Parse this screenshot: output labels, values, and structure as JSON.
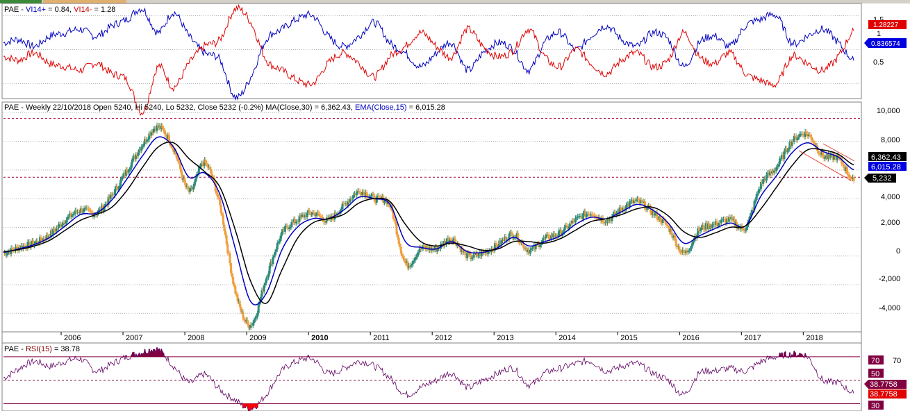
{
  "panels": {
    "vi": {
      "label_prefix": "PAE - ",
      "label_plus": "VI14+",
      "label_plus_val": " = 0.84, ",
      "label_minus": "VI14-",
      "label_minus_val": " = 1.28",
      "ticks": [
        "1.5",
        "1",
        "0.5"
      ],
      "badge_minus": "1.28227",
      "badge_plus": "0.836574"
    },
    "price": {
      "label_main": "PAE - Weekly 22/10/2018 Open 5240, Hi 5240, Lo 5232, Close 5232 (-0.2%) MA(Close,30) = 6,362.43, ",
      "label_ema": "EMA(Close,15)",
      "label_ema_val": " = 6,015.28",
      "ticks": [
        "10,000",
        "8,000",
        "6,000",
        "4,000",
        "2,000",
        "0",
        "-2,000",
        "-4,000"
      ],
      "badge_ma": "6,362.43",
      "badge_ema": "6,015.28",
      "badge_close": "5,232"
    },
    "rsi": {
      "label_prefix": "PAE - ",
      "label_rsi": "RSI(15)",
      "label_val": " = 38.78",
      "tick_70": "70",
      "badge_70": "70",
      "badge_50": "50",
      "badge_a": "38.7758",
      "badge_b": "38.7758",
      "badge_30": "30"
    }
  },
  "x_axis": {
    "years": [
      "2006",
      "2007",
      "2008",
      "2009",
      "2010",
      "2011",
      "2012",
      "2013",
      "2014",
      "2015",
      "2016",
      "2017",
      "2018"
    ]
  },
  "chart_data": [
    {
      "type": "line",
      "title": "PAE - VI14+ = 0.84, VI14- = 1.28",
      "ylim": [
        0.3,
        1.65
      ],
      "yticks": [
        0.5,
        1,
        1.5
      ],
      "x": [
        2005.0,
        2005.25,
        2005.5,
        2005.75,
        2006.0,
        2006.25,
        2006.5,
        2006.75,
        2007.0,
        2007.25,
        2007.5,
        2007.75,
        2008.0,
        2008.25,
        2008.5,
        2008.75,
        2009.0,
        2009.25,
        2009.5,
        2009.75,
        2010.0,
        2010.25,
        2010.5,
        2010.75,
        2011.0,
        2011.25,
        2011.5,
        2011.75,
        2012.0,
        2012.25,
        2012.5,
        2012.75,
        2013.0,
        2013.25,
        2013.5,
        2013.75,
        2014.0,
        2014.25,
        2014.5,
        2014.75,
        2015.0,
        2015.25,
        2015.5,
        2015.75,
        2016.0,
        2016.25,
        2016.5,
        2016.75,
        2017.0,
        2017.25,
        2017.5,
        2017.75,
        2018.0,
        2018.25,
        2018.5,
        2018.75
      ],
      "series": [
        {
          "name": "VI14+",
          "color": "#0000c0",
          "values": [
            1.1,
            1.15,
            1.05,
            1.2,
            1.25,
            1.3,
            1.2,
            1.35,
            1.45,
            1.6,
            1.25,
            1.55,
            1.2,
            0.95,
            0.85,
            0.3,
            0.6,
            1.15,
            1.3,
            1.45,
            1.5,
            1.2,
            1.05,
            1.2,
            1.4,
            1.1,
            0.95,
            0.75,
            0.95,
            1.1,
            0.7,
            0.95,
            1.1,
            1.0,
            0.7,
            1.1,
            1.25,
            1.0,
            1.2,
            1.35,
            1.15,
            1.05,
            1.25,
            1.15,
            0.75,
            1.1,
            1.2,
            1.05,
            1.35,
            1.45,
            1.5,
            1.1,
            1.2,
            1.3,
            1.1,
            0.84
          ]
        },
        {
          "name": "VI14-",
          "color": "#e00000",
          "values": [
            0.9,
            0.85,
            0.95,
            0.8,
            0.75,
            0.7,
            0.8,
            0.65,
            0.55,
            0.08,
            0.75,
            0.45,
            0.8,
            1.05,
            1.15,
            1.6,
            1.4,
            0.85,
            0.7,
            0.55,
            0.5,
            0.8,
            0.95,
            0.8,
            0.6,
            0.9,
            1.05,
            1.25,
            1.05,
            0.9,
            1.3,
            1.05,
            0.9,
            1.0,
            1.3,
            0.9,
            0.75,
            1.0,
            0.8,
            0.65,
            0.85,
            0.95,
            0.75,
            0.85,
            1.25,
            0.9,
            0.8,
            0.95,
            0.65,
            0.55,
            0.5,
            0.9,
            0.8,
            0.7,
            0.9,
            1.28
          ]
        }
      ]
    },
    {
      "type": "line",
      "title": "PAE - Weekly 22/10/2018 Open 5240, Hi 5240, Lo 5232, Close 5232 (-0.2%) MA(Close,30) = 6,362.43, EMA(Close,15) = 6,015.28",
      "ylim": [
        -5200,
        10600
      ],
      "yticks": [
        10000,
        8000,
        6000,
        4000,
        2000,
        0,
        -2000,
        -4000
      ],
      "x": [
        2005.0,
        2005.25,
        2005.5,
        2005.75,
        2006.0,
        2006.25,
        2006.5,
        2006.75,
        2007.0,
        2007.25,
        2007.5,
        2007.75,
        2008.0,
        2008.25,
        2008.5,
        2008.75,
        2009.0,
        2009.25,
        2009.5,
        2009.75,
        2010.0,
        2010.25,
        2010.5,
        2010.75,
        2011.0,
        2011.25,
        2011.5,
        2011.75,
        2012.0,
        2012.25,
        2012.5,
        2012.75,
        2013.0,
        2013.25,
        2013.5,
        2013.75,
        2014.0,
        2014.25,
        2014.5,
        2014.75,
        2015.0,
        2015.25,
        2015.5,
        2015.75,
        2016.0,
        2016.25,
        2016.5,
        2016.75,
        2017.0,
        2017.25,
        2017.5,
        2017.75,
        2018.0,
        2018.25,
        2018.5,
        2018.75
      ],
      "series": [
        {
          "name": "Close",
          "values": [
            200,
            600,
            900,
            1500,
            2500,
            3200,
            3000,
            4200,
            6000,
            7800,
            9000,
            7500,
            4500,
            6500,
            3500,
            -2500,
            -4800,
            -1500,
            1500,
            2500,
            3000,
            2500,
            3500,
            4500,
            4000,
            3500,
            -500,
            500,
            500,
            1200,
            0,
            200,
            800,
            1500,
            400,
            1200,
            1600,
            2500,
            3000,
            2500,
            3300,
            3800,
            3000,
            2000,
            200,
            1800,
            2200,
            2500,
            2000,
            5000,
            6200,
            8000,
            8500,
            7000,
            6800,
            5232
          ]
        },
        {
          "name": "EMA(Close,15)",
          "color": "#0000c0",
          "values": [
            250,
            500,
            800,
            1300,
            2100,
            2900,
            3000,
            3900,
            5400,
            7000,
            8300,
            7600,
            5500,
            5800,
            4300,
            500,
            -3200,
            -2600,
            400,
            2000,
            2600,
            2600,
            3200,
            4100,
            4000,
            3600,
            1000,
            600,
            500,
            1000,
            300,
            250,
            600,
            1300,
            700,
            1000,
            1400,
            2200,
            2700,
            2600,
            3100,
            3600,
            3200,
            2300,
            900,
            1400,
            1900,
            2300,
            2100,
            4200,
            5600,
            7200,
            7900,
            7300,
            6900,
            6015
          ]
        },
        {
          "name": "MA(Close,30)",
          "color": "#000000",
          "values": [
            300,
            450,
            700,
            1100,
            1800,
            2500,
            2900,
            3400,
            4600,
            6200,
            7600,
            7900,
            6800,
            5900,
            4800,
            1800,
            -1800,
            -3300,
            -1000,
            1200,
            2300,
            2600,
            2900,
            3700,
            4000,
            3800,
            2200,
            1000,
            700,
            900,
            700,
            400,
            500,
            1000,
            1000,
            900,
            1200,
            1800,
            2400,
            2600,
            2900,
            3300,
            3400,
            2800,
            1700,
            1300,
            1600,
            2000,
            2100,
            3300,
            4800,
            6300,
            7400,
            7400,
            7100,
            6362
          ]
        }
      ],
      "reference_lines": [
        9600,
        5500
      ],
      "annotations": [
        "6,362.43",
        "6,015.28",
        "5,232"
      ]
    },
    {
      "type": "line",
      "title": "PAE - RSI(15) = 38.78",
      "ylim": [
        25,
        80
      ],
      "yticks": [
        30,
        50,
        70
      ],
      "x": [
        2005.0,
        2005.25,
        2005.5,
        2005.75,
        2006.0,
        2006.25,
        2006.5,
        2006.75,
        2007.0,
        2007.25,
        2007.5,
        2007.75,
        2008.0,
        2008.25,
        2008.5,
        2008.75,
        2009.0,
        2009.25,
        2009.5,
        2009.75,
        2010.0,
        2010.25,
        2010.5,
        2010.75,
        2011.0,
        2011.25,
        2011.5,
        2011.75,
        2012.0,
        2012.25,
        2012.5,
        2012.75,
        2013.0,
        2013.25,
        2013.5,
        2013.75,
        2014.0,
        2014.25,
        2014.5,
        2014.75,
        2015.0,
        2015.25,
        2015.5,
        2015.75,
        2016.0,
        2016.25,
        2016.5,
        2016.75,
        2017.0,
        2017.25,
        2017.5,
        2017.75,
        2018.0,
        2018.25,
        2018.5,
        2018.75
      ],
      "series": [
        {
          "name": "RSI(15)",
          "color": "#600060",
          "values": [
            52,
            60,
            66,
            62,
            66,
            68,
            58,
            64,
            70,
            74,
            76,
            62,
            48,
            55,
            42,
            33,
            26,
            38,
            58,
            66,
            68,
            56,
            60,
            66,
            62,
            52,
            38,
            44,
            50,
            56,
            44,
            50,
            56,
            60,
            46,
            56,
            60,
            64,
            66,
            58,
            62,
            64,
            56,
            50,
            38,
            56,
            58,
            60,
            58,
            66,
            70,
            72,
            70,
            50,
            48,
            38.78
          ]
        }
      ],
      "reference_lines": [
        70,
        50,
        30
      ]
    }
  ]
}
